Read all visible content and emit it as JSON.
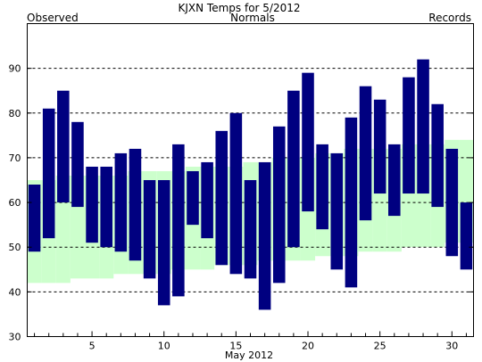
{
  "chart_data": {
    "type": "bar",
    "title": "KJXN Temps for 5/2012",
    "xlabel": "May 2012",
    "ylabel": "",
    "ylim": [
      30,
      100
    ],
    "xlim": [
      0.5,
      31.5
    ],
    "x_ticks": [
      5,
      10,
      15,
      20,
      25,
      30
    ],
    "y_ticks": [
      30,
      40,
      50,
      60,
      70,
      80,
      90
    ],
    "grid": "horizontal dashed at each y tick",
    "legend": {
      "placement": "top",
      "entries": [
        {
          "label": "Observed",
          "color": "#000080"
        },
        {
          "label": "Normals",
          "color": "#006400"
        },
        {
          "label": "Records",
          "color": "#c080e0"
        }
      ]
    },
    "days": [
      1,
      2,
      3,
      4,
      5,
      6,
      7,
      8,
      9,
      10,
      11,
      12,
      13,
      14,
      15,
      16,
      17,
      18,
      19,
      20,
      21,
      22,
      23,
      24,
      25,
      26,
      27,
      28,
      29,
      30,
      31
    ],
    "series": [
      {
        "name": "Observed",
        "color": "#000080",
        "highs": [
          64,
          81,
          85,
          78,
          68,
          68,
          71,
          72,
          65,
          65,
          73,
          67,
          69,
          76,
          80,
          65,
          69,
          77,
          85,
          89,
          73,
          71,
          79,
          86,
          83,
          73,
          88,
          92,
          82,
          72,
          60
        ],
        "lows": [
          49,
          52,
          60,
          59,
          51,
          50,
          49,
          47,
          43,
          37,
          39,
          55,
          52,
          46,
          44,
          43,
          36,
          42,
          50,
          58,
          54,
          45,
          41,
          56,
          62,
          57,
          62,
          62,
          59,
          48,
          45
        ]
      },
      {
        "name": "Normals",
        "color": "#ccffcc",
        "highs": [
          65,
          65,
          66,
          66,
          66,
          66,
          66,
          67,
          67,
          67,
          67,
          68,
          68,
          68,
          68,
          69,
          69,
          70,
          70,
          70,
          71,
          71,
          72,
          72,
          72,
          72,
          73,
          73,
          73,
          74,
          74
        ],
        "lows": [
          42,
          42,
          42,
          43,
          43,
          43,
          44,
          44,
          44,
          44,
          45,
          45,
          45,
          46,
          46,
          46,
          47,
          47,
          47,
          47,
          48,
          48,
          48,
          49,
          49,
          49,
          50,
          50,
          50,
          51,
          51
        ]
      }
    ]
  }
}
